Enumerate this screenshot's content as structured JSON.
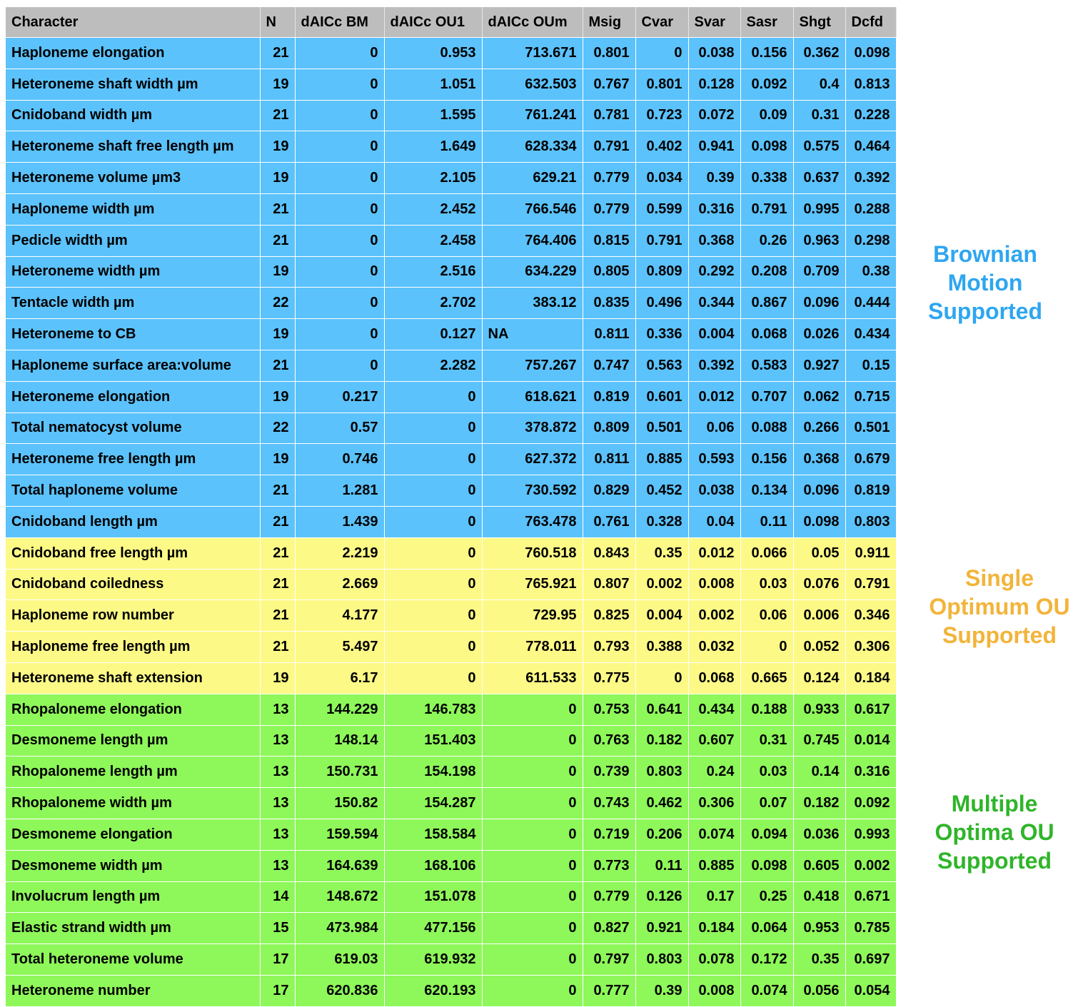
{
  "columns": [
    "Character",
    "N",
    "dAICc BM",
    "dAICc OU1",
    "dAICc OUm",
    "Msig",
    "Cvar",
    "Svar",
    "Sasr",
    "Shgt",
    "Dcfd"
  ],
  "groups": [
    {
      "id": "bm",
      "label_lines": [
        "Brownian",
        "Motion",
        "Supported"
      ],
      "color": "#2ea6f0"
    },
    {
      "id": "ou1",
      "label_lines": [
        "Single",
        "Optimum OU",
        "Supported"
      ],
      "color": "#f2b43a"
    },
    {
      "id": "oum",
      "label_lines": [
        "Multiple",
        "Optima OU",
        "Supported"
      ],
      "color": "#2fb52a"
    }
  ],
  "rows": [
    {
      "group": "bm",
      "cells": [
        "Haploneme elongation",
        "21",
        "0",
        "0.953",
        "713.671",
        "0.801",
        "0",
        "0.038",
        "0.156",
        "0.362",
        "0.098"
      ]
    },
    {
      "group": "bm",
      "cells": [
        "Heteroneme shaft width µm",
        "19",
        "0",
        "1.051",
        "632.503",
        "0.767",
        "0.801",
        "0.128",
        "0.092",
        "0.4",
        "0.813"
      ]
    },
    {
      "group": "bm",
      "cells": [
        "Cnidoband width µm",
        "21",
        "0",
        "1.595",
        "761.241",
        "0.781",
        "0.723",
        "0.072",
        "0.09",
        "0.31",
        "0.228"
      ]
    },
    {
      "group": "bm",
      "cells": [
        "Heteroneme shaft free length µm",
        "19",
        "0",
        "1.649",
        "628.334",
        "0.791",
        "0.402",
        "0.941",
        "0.098",
        "0.575",
        "0.464"
      ]
    },
    {
      "group": "bm",
      "cells": [
        "Heteroneme volume µm3",
        "19",
        "0",
        "2.105",
        "629.21",
        "0.779",
        "0.034",
        "0.39",
        "0.338",
        "0.637",
        "0.392"
      ]
    },
    {
      "group": "bm",
      "cells": [
        "Haploneme width µm",
        "21",
        "0",
        "2.452",
        "766.546",
        "0.779",
        "0.599",
        "0.316",
        "0.791",
        "0.995",
        "0.288"
      ]
    },
    {
      "group": "bm",
      "cells": [
        "Pedicle width µm",
        "21",
        "0",
        "2.458",
        "764.406",
        "0.815",
        "0.791",
        "0.368",
        "0.26",
        "0.963",
        "0.298"
      ]
    },
    {
      "group": "bm",
      "cells": [
        "Heteroneme width µm",
        "19",
        "0",
        "2.516",
        "634.229",
        "0.805",
        "0.809",
        "0.292",
        "0.208",
        "0.709",
        "0.38"
      ]
    },
    {
      "group": "bm",
      "cells": [
        "Tentacle width µm",
        "22",
        "0",
        "2.702",
        "383.12",
        "0.835",
        "0.496",
        "0.344",
        "0.867",
        "0.096",
        "0.444"
      ]
    },
    {
      "group": "bm",
      "cells": [
        "Heteroneme to CB",
        "19",
        "0",
        "0.127",
        "NA",
        "0.811",
        "0.336",
        "0.004",
        "0.068",
        "0.026",
        "0.434"
      ],
      "left_align": [
        4
      ]
    },
    {
      "group": "bm",
      "cells": [
        "Haploneme surface area:volume",
        "21",
        "0",
        "2.282",
        "757.267",
        "0.747",
        "0.563",
        "0.392",
        "0.583",
        "0.927",
        "0.15"
      ]
    },
    {
      "group": "bm",
      "cells": [
        "Heteroneme elongation",
        "19",
        "0.217",
        "0",
        "618.621",
        "0.819",
        "0.601",
        "0.012",
        "0.707",
        "0.062",
        "0.715"
      ]
    },
    {
      "group": "bm",
      "cells": [
        "Total nematocyst volume",
        "22",
        "0.57",
        "0",
        "378.872",
        "0.809",
        "0.501",
        "0.06",
        "0.088",
        "0.266",
        "0.501"
      ]
    },
    {
      "group": "bm",
      "cells": [
        "Heteroneme free length µm",
        "19",
        "0.746",
        "0",
        "627.372",
        "0.811",
        "0.885",
        "0.593",
        "0.156",
        "0.368",
        "0.679"
      ]
    },
    {
      "group": "bm",
      "cells": [
        "Total haploneme volume",
        "21",
        "1.281",
        "0",
        "730.592",
        "0.829",
        "0.452",
        "0.038",
        "0.134",
        "0.096",
        "0.819"
      ]
    },
    {
      "group": "bm",
      "cells": [
        "Cnidoband length µm",
        "21",
        "1.439",
        "0",
        "763.478",
        "0.761",
        "0.328",
        "0.04",
        "0.11",
        "0.098",
        "0.803"
      ]
    },
    {
      "group": "ou1",
      "cells": [
        "Cnidoband free length µm",
        "21",
        "2.219",
        "0",
        "760.518",
        "0.843",
        "0.35",
        "0.012",
        "0.066",
        "0.05",
        "0.911"
      ]
    },
    {
      "group": "ou1",
      "cells": [
        "Cnidoband coiledness",
        "21",
        "2.669",
        "0",
        "765.921",
        "0.807",
        "0.002",
        "0.008",
        "0.03",
        "0.076",
        "0.791"
      ]
    },
    {
      "group": "ou1",
      "cells": [
        "Haploneme row number",
        "21",
        "4.177",
        "0",
        "729.95",
        "0.825",
        "0.004",
        "0.002",
        "0.06",
        "0.006",
        "0.346"
      ]
    },
    {
      "group": "ou1",
      "cells": [
        "Haploneme free length µm",
        "21",
        "5.497",
        "0",
        "778.011",
        "0.793",
        "0.388",
        "0.032",
        "0",
        "0.052",
        "0.306"
      ]
    },
    {
      "group": "ou1",
      "cells": [
        "Heteroneme shaft extension",
        "19",
        "6.17",
        "0",
        "611.533",
        "0.775",
        "0",
        "0.068",
        "0.665",
        "0.124",
        "0.184"
      ]
    },
    {
      "group": "oum",
      "cells": [
        "Rhopaloneme elongation",
        "13",
        "144.229",
        "146.783",
        "0",
        "0.753",
        "0.641",
        "0.434",
        "0.188",
        "0.933",
        "0.617"
      ]
    },
    {
      "group": "oum",
      "cells": [
        "Desmoneme length µm",
        "13",
        "148.14",
        "151.403",
        "0",
        "0.763",
        "0.182",
        "0.607",
        "0.31",
        "0.745",
        "0.014"
      ]
    },
    {
      "group": "oum",
      "cells": [
        "Rhopaloneme length µm",
        "13",
        "150.731",
        "154.198",
        "0",
        "0.739",
        "0.803",
        "0.24",
        "0.03",
        "0.14",
        "0.316"
      ]
    },
    {
      "group": "oum",
      "cells": [
        "Rhopaloneme width µm",
        "13",
        "150.82",
        "154.287",
        "0",
        "0.743",
        "0.462",
        "0.306",
        "0.07",
        "0.182",
        "0.092"
      ]
    },
    {
      "group": "oum",
      "cells": [
        "Desmoneme elongation",
        "13",
        "159.594",
        "158.584",
        "0",
        "0.719",
        "0.206",
        "0.074",
        "0.094",
        "0.036",
        "0.993"
      ]
    },
    {
      "group": "oum",
      "cells": [
        "Desmoneme width µm",
        "13",
        "164.639",
        "168.106",
        "0",
        "0.773",
        "0.11",
        "0.885",
        "0.098",
        "0.605",
        "0.002"
      ]
    },
    {
      "group": "oum",
      "cells": [
        "Involucrum length µm",
        "14",
        "148.672",
        "151.078",
        "0",
        "0.779",
        "0.126",
        "0.17",
        "0.25",
        "0.418",
        "0.671"
      ]
    },
    {
      "group": "oum",
      "cells": [
        "Elastic strand width µm",
        "15",
        "473.984",
        "477.156",
        "0",
        "0.827",
        "0.921",
        "0.184",
        "0.064",
        "0.953",
        "0.785"
      ]
    },
    {
      "group": "oum",
      "cells": [
        "Total heteroneme volume",
        "17",
        "619.03",
        "619.932",
        "0",
        "0.797",
        "0.803",
        "0.078",
        "0.172",
        "0.35",
        "0.697"
      ]
    },
    {
      "group": "oum",
      "cells": [
        "Heteroneme number",
        "17",
        "620.836",
        "620.193",
        "0",
        "0.777",
        "0.39",
        "0.008",
        "0.074",
        "0.056",
        "0.054"
      ]
    }
  ]
}
